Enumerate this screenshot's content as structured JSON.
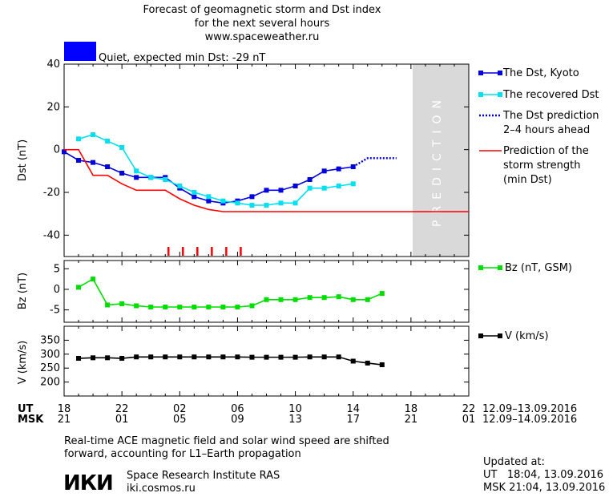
{
  "header": {
    "title_line1": "Forecast of geomagnetic storm and Dst index",
    "title_line2": "for the next several hours",
    "site": "www.spaceweather.ru"
  },
  "status": {
    "text": "Quiet, expected min Dst: -29 nT",
    "color": "#0000ff"
  },
  "chart_data": [
    {
      "type": "line",
      "panel": "dst",
      "ylabel": "Dst (nT)",
      "ylim": [
        -50,
        40
      ],
      "yticks": [
        40,
        20,
        0,
        -20,
        -40
      ],
      "xlim": [
        0,
        28
      ],
      "x_note": "hours since 12.09.2016 18:00 UT",
      "prediction_band": {
        "label": "PREDICTION",
        "x_from": 20,
        "x_to": 28
      },
      "series": [
        {
          "name": "The Dst, Kyoto",
          "color": "#0000dd",
          "marker": "square",
          "x": [
            0,
            1,
            2,
            3,
            4,
            5,
            6,
            7,
            8,
            9,
            10,
            11,
            12,
            13,
            14,
            15,
            16,
            17,
            18,
            19,
            20
          ],
          "y": [
            -1,
            -5,
            -6,
            -8,
            -11,
            -13,
            -13,
            -13,
            -18,
            -22,
            -24,
            -25,
            -24,
            -22,
            -19,
            -19,
            -17,
            -14,
            -10,
            -9,
            -8
          ]
        },
        {
          "name": "The recovered Dst",
          "color": "#00e0f0",
          "marker": "square",
          "x": [
            1,
            2,
            3,
            4,
            5,
            6,
            7,
            8,
            9,
            10,
            11,
            12,
            13,
            14,
            15,
            16,
            17,
            18,
            19,
            20
          ],
          "y": [
            5,
            7,
            4,
            1,
            -10,
            -13,
            -14,
            -17,
            -20,
            -22,
            -24,
            -25,
            -26,
            -26,
            -25,
            -25,
            -18,
            -18,
            -17,
            -16
          ]
        },
        {
          "name": "The Dst prediction 2–4 hours ahead",
          "color": "#0000cc",
          "style": "dotted",
          "x": [
            20,
            21,
            23
          ],
          "y": [
            -8,
            -4,
            -4
          ]
        },
        {
          "name": "Prediction of the storm strength (min Dst)",
          "color": "#ff0000",
          "style": "step",
          "x": [
            0,
            1,
            2,
            3,
            4,
            5,
            6,
            7,
            8,
            9,
            10,
            11,
            12,
            13,
            14,
            15,
            16,
            17,
            18,
            19,
            20,
            21,
            22,
            23,
            24,
            25,
            26,
            27,
            28
          ],
          "y": [
            0,
            0,
            -12,
            -12,
            -16,
            -19,
            -19,
            -19,
            -23,
            -26,
            -28,
            -29,
            -29,
            -29,
            -29,
            -29,
            -29,
            -29,
            -29,
            -29,
            -29,
            -29,
            -29,
            -29,
            -29,
            -29,
            -29,
            -29,
            -29
          ]
        }
      ],
      "event_ticks_x": [
        7,
        8,
        9,
        10,
        11,
        12
      ],
      "legend": [
        {
          "lines": [
            "The Dst, Kyoto"
          ]
        },
        {
          "lines": [
            "The recovered Dst"
          ]
        },
        {
          "lines": [
            "The Dst prediction",
            "2–4 hours ahead"
          ]
        },
        {
          "lines": [
            "Prediction of the",
            "storm strength",
            "(min Dst)"
          ]
        }
      ]
    },
    {
      "type": "line",
      "panel": "bz",
      "ylabel": "Bz (nT)",
      "ylim": [
        -8,
        7
      ],
      "yticks": [
        5,
        0,
        -5
      ],
      "series": [
        {
          "name": "Bz (nT, GSM)",
          "color": "#00dd00",
          "marker": "square",
          "x": [
            1,
            2,
            3,
            4,
            5,
            6,
            7,
            8,
            9,
            10,
            11,
            12,
            13,
            14,
            15,
            16,
            17,
            18,
            19,
            20,
            21,
            22
          ],
          "y": [
            0.5,
            2.5,
            -3.8,
            -3.5,
            -4,
            -4.3,
            -4.3,
            -4.3,
            -4.3,
            -4.3,
            -4.3,
            -4.3,
            -4,
            -2.5,
            -2.5,
            -2.5,
            -2,
            -2,
            -1.8,
            -2.5,
            -2.5,
            -1
          ]
        }
      ]
    },
    {
      "type": "line",
      "panel": "v",
      "ylabel": "V (km/s)",
      "ylim": [
        150,
        400
      ],
      "yticks": [
        350,
        300,
        250,
        200
      ],
      "series": [
        {
          "name": "V (km/s)",
          "color": "#000000",
          "marker": "square",
          "x": [
            1,
            2,
            3,
            4,
            5,
            6,
            7,
            8,
            9,
            10,
            11,
            12,
            13,
            14,
            15,
            16,
            17,
            18,
            19,
            20,
            21,
            22
          ],
          "y": [
            285,
            287,
            287,
            285,
            290,
            290,
            290,
            290,
            290,
            290,
            290,
            290,
            289,
            289,
            289,
            289,
            290,
            290,
            290,
            275,
            268,
            262
          ]
        }
      ]
    }
  ],
  "time_axis": {
    "ut_label": "UT",
    "msk_label": "MSK",
    "ut_ticks": [
      "18",
      "22",
      "02",
      "06",
      "10",
      "14",
      "18",
      "22"
    ],
    "msk_ticks": [
      "21",
      "01",
      "05",
      "09",
      "13",
      "17",
      "21",
      "01"
    ],
    "ut_range": "12.09–13.09.2016",
    "msk_range": "12.09–14.09.2016"
  },
  "footer": {
    "note_line1": "Real-time ACE magnetic field and solar wind speed are shifted",
    "note_line2": "forward, accounting for L1–Earth propagation",
    "logo": "ИКИ",
    "institute": "Space Research Institute RAS",
    "institute_url": "iki.cosmos.ru",
    "updated_label": "Updated at:",
    "updated_ut": "UT   18:04, 13.09.2016",
    "updated_msk": "MSK 21:04, 13.09.2016"
  }
}
